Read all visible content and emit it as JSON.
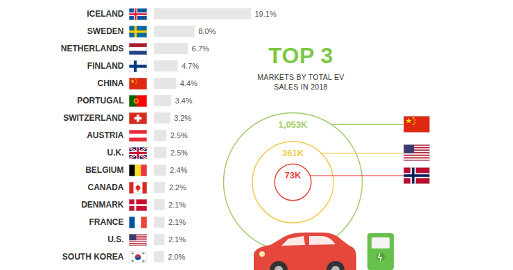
{
  "chart_data": [
    {
      "type": "bar",
      "orientation": "horizontal",
      "categories": [
        "ICELAND",
        "SWEDEN",
        "NETHERLANDS",
        "FINLAND",
        "CHINA",
        "PORTUGAL",
        "SWITZERLAND",
        "AUSTRIA",
        "U.K.",
        "BELGIUM",
        "CANADA",
        "DENMARK",
        "FRANCE",
        "U.S.",
        "SOUTH KOREA"
      ],
      "values": [
        19.1,
        8.0,
        6.7,
        4.7,
        4.4,
        3.4,
        3.2,
        2.5,
        2.5,
        2.4,
        2.2,
        2.1,
        2.1,
        2.1,
        2.0
      ],
      "value_labels": [
        "19.1%",
        "8.0%",
        "6.7%",
        "4.7%",
        "4.4%",
        "3.4%",
        "3.2%",
        "2.5%",
        "2.5%",
        "2.4%",
        "2.2%",
        "2.1%",
        "2.1%",
        "2.1%",
        "2.0%"
      ],
      "data_labels": true,
      "color": "#e6e6e6",
      "xlim": [
        0,
        19.1
      ],
      "xticks": [],
      "tick_labels": "y"
    },
    {
      "type": "bubble",
      "title": "TOP 3",
      "subtitle": "MARKETS BY TOTAL EV SALES IN 2018",
      "categories": [
        null,
        null,
        null
      ],
      "values": [
        1053,
        361,
        73
      ],
      "value_labels": [
        "1,053K",
        "361K",
        "73K"
      ],
      "colors": [
        "#9fcd66",
        "#f2c94c",
        "#e5473d"
      ],
      "data_labels": true,
      "tick_labels": false
    }
  ]
}
